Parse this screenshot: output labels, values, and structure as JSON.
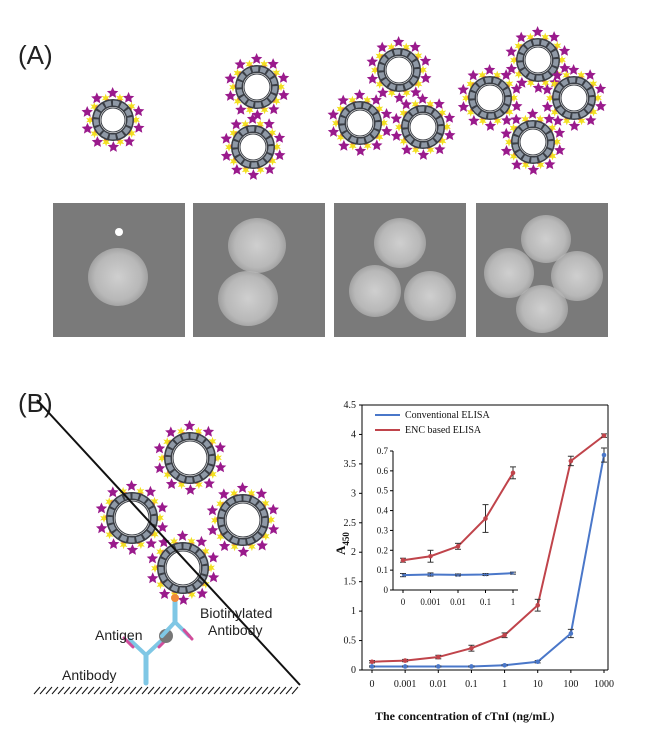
{
  "panels": {
    "a_label": "(A)",
    "b_label": "(B)"
  },
  "diagram_labels": {
    "antigen": "Antigen",
    "biotinylated_line1": "Biotinylated",
    "biotinylated_line2": "Antibody",
    "antibody": "Antibody"
  },
  "colors": {
    "conventional": "#4a77c9",
    "enc": "#c0444b",
    "ring": "#3b3f46",
    "ring_fill": "#8f99a6",
    "star_yellow": "#f2e021",
    "star_purple": "#9a1a8c",
    "antibody_blue": "#7fc7e5",
    "antibody_pink": "#d14d9a"
  },
  "chart_data": {
    "type": "line",
    "categories": [
      "0",
      "0.001",
      "0.01",
      "0.1",
      "1",
      "10",
      "100",
      "1000"
    ],
    "xlabel": "The concentration of cTnI (ng/mL)",
    "ylabel_main": "A",
    "ylabel_sub": "450",
    "ylim": [
      0,
      4.5
    ],
    "yticks": [
      "0",
      "0.5",
      "1",
      "1.5",
      "2",
      "2.5",
      "3",
      "3.5",
      "4",
      "4.5"
    ],
    "legend_position": "top-left",
    "series": [
      {
        "name": "Conventional ELISA",
        "values": [
          0.06,
          0.06,
          0.06,
          0.06,
          0.08,
          0.14,
          0.62,
          3.65
        ],
        "errors": [
          0.01,
          0.01,
          0.01,
          0.01,
          0.01,
          0.02,
          0.07,
          0.12
        ]
      },
      {
        "name": "ENC based ELISA",
        "values": [
          0.14,
          0.16,
          0.22,
          0.37,
          0.59,
          1.1,
          3.55,
          3.98
        ],
        "errors": [
          0.02,
          0.02,
          0.03,
          0.05,
          0.04,
          0.1,
          0.08,
          0.03
        ]
      }
    ],
    "inset": {
      "categories": [
        "0",
        "0.001",
        "0.01",
        "0.1",
        "1"
      ],
      "ylim": [
        0,
        0.7
      ],
      "yticks": [
        "0",
        "0.1",
        "0.2",
        "0.3",
        "0.4",
        "0.5",
        "0.6",
        "0.7"
      ],
      "series": [
        {
          "name": "Conventional ELISA",
          "values": [
            0.075,
            0.078,
            0.076,
            0.078,
            0.085
          ],
          "errors": [
            0.008,
            0.008,
            0.005,
            0.005,
            0.005
          ]
        },
        {
          "name": "ENC based ELISA",
          "values": [
            0.15,
            0.17,
            0.22,
            0.36,
            0.59
          ],
          "errors": [
            0.01,
            0.03,
            0.015,
            0.07,
            0.03
          ]
        }
      ]
    }
  }
}
